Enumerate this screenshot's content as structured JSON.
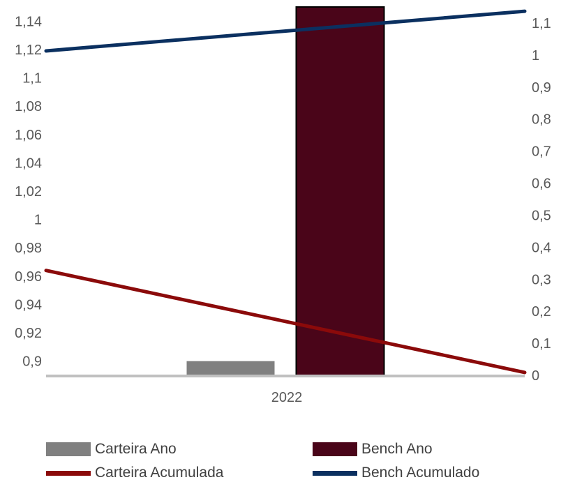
{
  "chart_data": {
    "type": "bar",
    "categories": [
      "2022"
    ],
    "title": "",
    "xlabel": "",
    "ylabel": "",
    "grid": false,
    "legend_position": "bottom",
    "y_left": {
      "ylim": [
        0.89,
        1.15
      ],
      "ticks": [
        "0,9",
        "0,92",
        "0,94",
        "0,96",
        "0,98",
        "1",
        "1,02",
        "1,04",
        "1,06",
        "1,08",
        "1,1",
        "1,12",
        "1,14"
      ],
      "tick_values": [
        0.9,
        0.92,
        0.94,
        0.96,
        0.98,
        1.0,
        1.02,
        1.04,
        1.06,
        1.08,
        1.1,
        1.12,
        1.14
      ]
    },
    "y_right": {
      "ylim": [
        0,
        1.15
      ],
      "ticks": [
        "0",
        "0,1",
        "0,2",
        "0,3",
        "0,4",
        "0,5",
        "0,6",
        "0,7",
        "0,8",
        "0,9",
        "1",
        "1,1"
      ],
      "tick_values": [
        0,
        0.1,
        0.2,
        0.3,
        0.4,
        0.5,
        0.6,
        0.7,
        0.8,
        0.9,
        1.0,
        1.1
      ]
    },
    "bar_series": [
      {
        "name": "Carteira Ano",
        "values": [
          0.9
        ]
      },
      {
        "name": "Bench Ano",
        "values": [
          1.15
        ]
      }
    ],
    "line_series": [
      {
        "name": "Carteira Acumulada",
        "axis": "left",
        "start": 0.964,
        "end": 0.892
      },
      {
        "name": "Bench Acumulado",
        "axis": "left",
        "start": 1.119,
        "end": 1.147
      }
    ],
    "colors": {
      "Carteira Ano": "#808080",
      "Bench Ano": "#4A0519",
      "Carteira Acumulada": "#8B0A0A",
      "Bench Acumulado": "#0B3060",
      "axis_line": "#C0C0C0",
      "tick_text": "#595959"
    }
  }
}
